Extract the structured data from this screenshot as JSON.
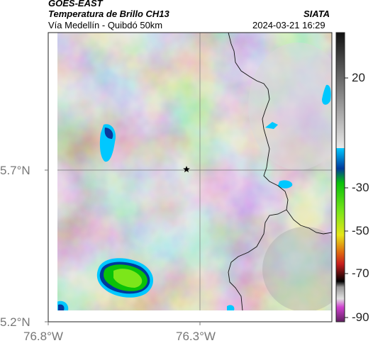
{
  "header": {
    "satellite": "GOES-EAST",
    "product": "Temperatura de Brillo CH13",
    "org": "SIATA",
    "region": "Vía Medellín - Quibdó 50km",
    "datetime": "2024-03-21 16:29"
  },
  "map": {
    "lon_ticks": [
      "76.8°W",
      "76.3°W"
    ],
    "lat_ticks": [
      "5.7°N",
      "5.2°N"
    ],
    "marker": "star-marker"
  },
  "colorbar": {
    "tick_labels": [
      "20",
      "-30",
      "-50",
      "-70",
      "-90"
    ],
    "colors": {
      "gray_dark": "#1a1a1a",
      "gray_light": "#e6e6e6",
      "cyan": "#00c8ff",
      "blue": "#003a9c",
      "green": "#19e619",
      "yellow": "#e6e619",
      "red": "#c81e1e",
      "black": "#000000",
      "magenta": "#c040c0"
    }
  }
}
